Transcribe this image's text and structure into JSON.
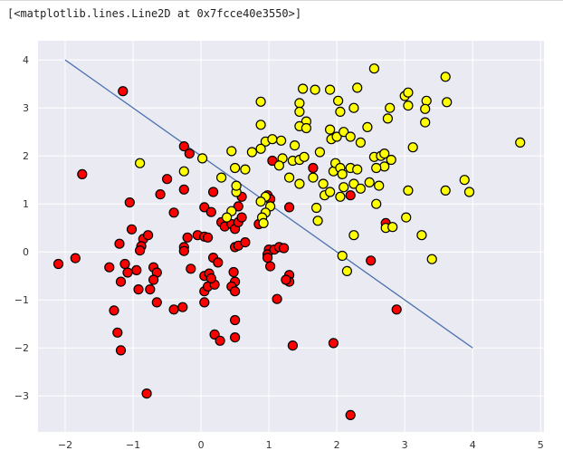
{
  "output": {
    "repr_text": "[<matplotlib.lines.Line2D at 0x7fcce40e3550>]"
  },
  "colors": {
    "background": "#eaeaf2",
    "grid": "#ffffff",
    "line": "#4c72b0",
    "class0": "#ff0000",
    "class1": "#ffff00",
    "edge": "#000000"
  },
  "chart_data": {
    "type": "scatter",
    "title": "",
    "xlabel": "",
    "ylabel": "",
    "xlim": [
      -2.4,
      5.05
    ],
    "ylim": [
      -3.75,
      4.4
    ],
    "xticks": [
      -2,
      -1,
      0,
      1,
      2,
      3,
      4,
      5
    ],
    "yticks": [
      -3,
      -2,
      -1,
      0,
      1,
      2,
      3,
      4
    ],
    "grid": true,
    "decision_line": {
      "x": [
        -2,
        4
      ],
      "y": [
        4,
        -2
      ]
    },
    "series": [
      {
        "color": "#ff0000",
        "points": [
          [
            -1.15,
            3.35
          ],
          [
            -1.75,
            1.62
          ],
          [
            -1.05,
            1.03
          ],
          [
            -0.5,
            1.52
          ],
          [
            -0.6,
            1.2
          ],
          [
            -0.4,
            0.82
          ],
          [
            -0.25,
            2.2
          ],
          [
            -0.17,
            2.05
          ],
          [
            -0.25,
            1.3
          ],
          [
            -1.2,
            0.17
          ],
          [
            -1.02,
            0.47
          ],
          [
            -0.85,
            0.27
          ],
          [
            -0.88,
            0.12
          ],
          [
            -0.9,
            0.03
          ],
          [
            -0.78,
            0.35
          ],
          [
            -1.35,
            -0.32
          ],
          [
            -1.12,
            -0.25
          ],
          [
            -0.95,
            -0.38
          ],
          [
            -0.7,
            -0.32
          ],
          [
            -0.65,
            -0.43
          ],
          [
            -0.7,
            -0.58
          ],
          [
            -1.18,
            -0.62
          ],
          [
            -1.08,
            -0.43
          ],
          [
            -0.92,
            -0.78
          ],
          [
            -0.75,
            -0.78
          ],
          [
            -0.65,
            -1.05
          ],
          [
            -0.4,
            -1.2
          ],
          [
            -0.27,
            -1.15
          ],
          [
            -1.28,
            -1.22
          ],
          [
            -1.23,
            -1.68
          ],
          [
            -1.18,
            -2.05
          ],
          [
            -0.8,
            -2.95
          ],
          [
            -2.1,
            -0.25
          ],
          [
            -1.85,
            -0.13
          ],
          [
            -0.25,
            0.1
          ],
          [
            -0.25,
            0.02
          ],
          [
            -0.2,
            0.3
          ],
          [
            -0.05,
            0.35
          ],
          [
            0.05,
            0.32
          ],
          [
            0.1,
            0.3
          ],
          [
            -0.15,
            -0.35
          ],
          [
            0.05,
            -0.5
          ],
          [
            0.12,
            -0.45
          ],
          [
            0.05,
            -0.82
          ],
          [
            0.1,
            -0.72
          ],
          [
            0.2,
            -0.68
          ],
          [
            0.15,
            -0.55
          ],
          [
            0.05,
            -1.05
          ],
          [
            0.18,
            -0.12
          ],
          [
            0.25,
            -0.22
          ],
          [
            0.2,
            -1.72
          ],
          [
            0.28,
            -1.85
          ],
          [
            0.05,
            0.93
          ],
          [
            0.15,
            0.83
          ],
          [
            0.18,
            1.25
          ],
          [
            0.3,
            0.62
          ],
          [
            0.35,
            0.53
          ],
          [
            0.45,
            0.58
          ],
          [
            0.5,
            0.48
          ],
          [
            0.55,
            0.62
          ],
          [
            0.6,
            0.72
          ],
          [
            0.55,
            0.95
          ],
          [
            0.6,
            1.15
          ],
          [
            0.5,
            0.1
          ],
          [
            0.55,
            0.13
          ],
          [
            0.65,
            0.2
          ],
          [
            0.48,
            -0.42
          ],
          [
            0.5,
            -0.62
          ],
          [
            0.45,
            -0.72
          ],
          [
            0.5,
            -0.82
          ],
          [
            0.5,
            -1.42
          ],
          [
            0.5,
            -1.78
          ],
          [
            0.85,
            0.58
          ],
          [
            0.98,
            1.18
          ],
          [
            1.02,
            1.1
          ],
          [
            1.0,
            0.05
          ],
          [
            0.98,
            -0.05
          ],
          [
            1.08,
            0.05
          ],
          [
            1.15,
            0.1
          ],
          [
            1.22,
            0.08
          ],
          [
            0.98,
            -0.12
          ],
          [
            1.02,
            -0.3
          ],
          [
            1.3,
            -0.48
          ],
          [
            1.3,
            -0.62
          ],
          [
            1.25,
            -0.58
          ],
          [
            1.12,
            -0.98
          ],
          [
            1.35,
            -1.95
          ],
          [
            1.3,
            0.93
          ],
          [
            1.05,
            1.9
          ],
          [
            1.65,
            1.75
          ],
          [
            2.2,
            1.18
          ],
          [
            2.5,
            -0.18
          ],
          [
            2.72,
            0.6
          ],
          [
            2.88,
            -1.2
          ],
          [
            1.95,
            -1.9
          ],
          [
            2.2,
            -3.4
          ]
        ]
      },
      {
        "color": "#ffff00",
        "points": [
          [
            2.55,
            3.82
          ],
          [
            3.6,
            3.65
          ],
          [
            2.3,
            3.42
          ],
          [
            2.02,
            3.15
          ],
          [
            1.9,
            3.38
          ],
          [
            1.5,
            3.4
          ],
          [
            1.68,
            3.38
          ],
          [
            1.45,
            3.1
          ],
          [
            1.45,
            2.92
          ],
          [
            1.55,
            2.72
          ],
          [
            1.45,
            2.62
          ],
          [
            1.55,
            2.58
          ],
          [
            0.88,
            3.13
          ],
          [
            2.05,
            2.92
          ],
          [
            2.25,
            3.0
          ],
          [
            2.75,
            2.78
          ],
          [
            2.78,
            3.0
          ],
          [
            3.0,
            3.25
          ],
          [
            3.05,
            3.32
          ],
          [
            3.05,
            3.05
          ],
          [
            3.32,
            3.15
          ],
          [
            3.3,
            2.98
          ],
          [
            3.62,
            3.12
          ],
          [
            3.3,
            2.7
          ],
          [
            0.88,
            2.65
          ],
          [
            0.95,
            2.3
          ],
          [
            1.05,
            2.35
          ],
          [
            1.18,
            2.32
          ],
          [
            1.38,
            2.22
          ],
          [
            1.9,
            2.55
          ],
          [
            1.92,
            2.35
          ],
          [
            2.0,
            2.4
          ],
          [
            2.1,
            2.5
          ],
          [
            2.2,
            2.4
          ],
          [
            2.35,
            2.28
          ],
          [
            2.45,
            2.6
          ],
          [
            3.12,
            2.18
          ],
          [
            0.75,
            2.08
          ],
          [
            0.45,
            2.1
          ],
          [
            0.88,
            2.15
          ],
          [
            1.2,
            1.95
          ],
          [
            1.35,
            1.9
          ],
          [
            1.45,
            1.92
          ],
          [
            1.52,
            1.98
          ],
          [
            1.75,
            2.08
          ],
          [
            1.95,
            1.68
          ],
          [
            1.98,
            1.85
          ],
          [
            2.05,
            1.75
          ],
          [
            2.2,
            1.75
          ],
          [
            2.3,
            1.72
          ],
          [
            2.55,
            1.98
          ],
          [
            2.65,
            2.0
          ],
          [
            2.7,
            2.05
          ],
          [
            2.8,
            1.92
          ],
          [
            2.7,
            1.78
          ],
          [
            2.58,
            1.75
          ],
          [
            2.08,
            1.62
          ],
          [
            2.25,
            1.42
          ],
          [
            2.35,
            1.32
          ],
          [
            2.48,
            1.45
          ],
          [
            2.62,
            1.38
          ],
          [
            1.65,
            1.55
          ],
          [
            1.8,
            1.42
          ],
          [
            1.82,
            1.18
          ],
          [
            1.9,
            1.25
          ],
          [
            2.05,
            1.15
          ],
          [
            2.1,
            1.35
          ],
          [
            3.05,
            1.28
          ],
          [
            3.6,
            1.28
          ],
          [
            3.88,
            1.5
          ],
          [
            3.95,
            1.25
          ],
          [
            4.7,
            2.28
          ],
          [
            0.5,
            1.75
          ],
          [
            0.65,
            1.72
          ],
          [
            0.3,
            1.55
          ],
          [
            0.52,
            1.25
          ],
          [
            0.52,
            1.38
          ],
          [
            0.95,
            1.15
          ],
          [
            0.88,
            1.05
          ],
          [
            1.02,
            0.95
          ],
          [
            0.95,
            0.82
          ],
          [
            0.9,
            0.72
          ],
          [
            0.92,
            0.6
          ],
          [
            0.45,
            0.85
          ],
          [
            0.38,
            0.72
          ],
          [
            1.15,
            1.8
          ],
          [
            1.45,
            1.42
          ],
          [
            1.3,
            1.55
          ],
          [
            1.7,
            0.92
          ],
          [
            1.72,
            0.65
          ],
          [
            2.58,
            1.0
          ],
          [
            2.25,
            0.35
          ],
          [
            2.72,
            0.5
          ],
          [
            2.82,
            0.52
          ],
          [
            3.02,
            0.72
          ],
          [
            3.25,
            0.35
          ],
          [
            2.08,
            -0.08
          ],
          [
            2.15,
            -0.4
          ],
          [
            3.4,
            -0.15
          ],
          [
            -0.9,
            1.85
          ],
          [
            -0.25,
            1.68
          ],
          [
            0.02,
            1.95
          ]
        ]
      }
    ]
  }
}
